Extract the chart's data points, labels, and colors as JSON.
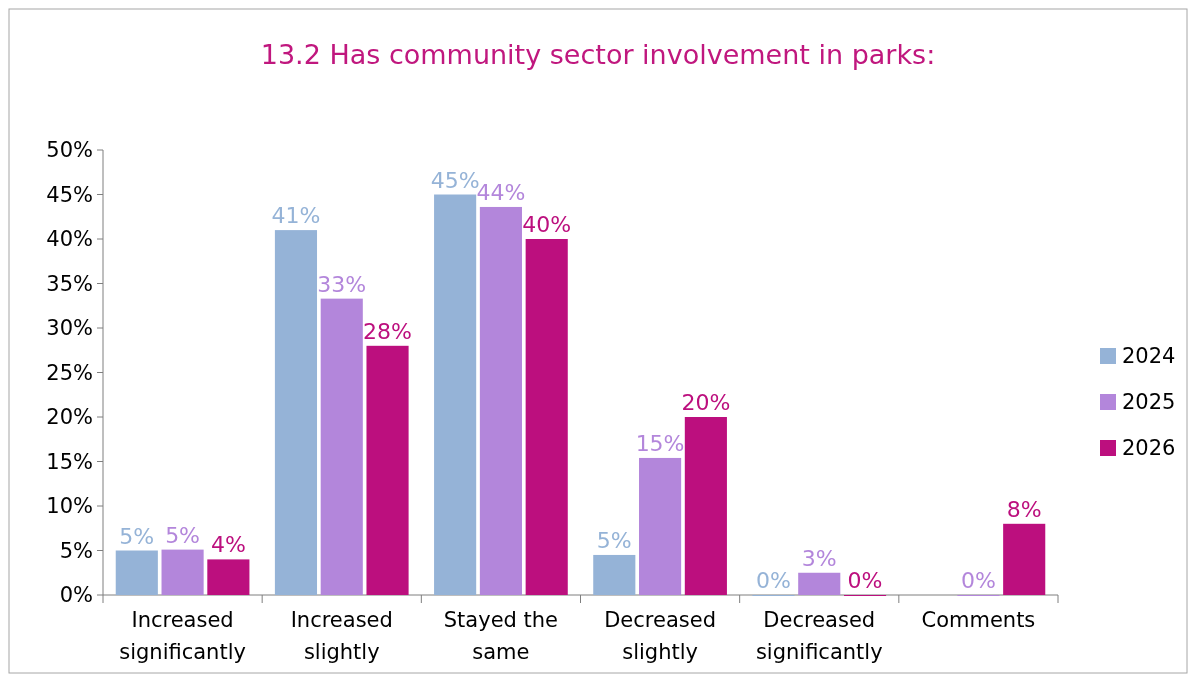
{
  "chart_data": {
    "type": "bar",
    "title": "13.2  Has community sector involvement in parks:",
    "categories": [
      "Increased significantly",
      "Increased slightly",
      "Stayed the same",
      "Decreased slightly",
      "Decreased significantly",
      "Comments"
    ],
    "series": [
      {
        "name": "2024",
        "color": "#95b3d7",
        "values": [
          5.0,
          41,
          45,
          4.5,
          0,
          null
        ],
        "value_labels": [
          "5%",
          "41%",
          "45%",
          "5%",
          "0%",
          null
        ]
      },
      {
        "name": "2025",
        "color": "#b386db",
        "values": [
          5.1,
          33.3,
          43.6,
          15.4,
          2.5,
          0
        ],
        "value_labels": [
          "5%",
          "33%",
          "44%",
          "15%",
          "3%",
          "0%"
        ]
      },
      {
        "name": "2026",
        "color": "#bc0f7e",
        "values": [
          4.0,
          28,
          40,
          20,
          0,
          8
        ],
        "value_labels": [
          "4%",
          "28%",
          "40%",
          "20%",
          "0%",
          "8%"
        ]
      }
    ],
    "ylim": [
      0,
      50
    ],
    "yticks": [
      {
        "value": 0,
        "label": "0%"
      },
      {
        "value": 5,
        "label": "5%"
      },
      {
        "value": 10,
        "label": "10%"
      },
      {
        "value": 15,
        "label": "15%"
      },
      {
        "value": 20,
        "label": "20%"
      },
      {
        "value": 25,
        "label": "25%"
      },
      {
        "value": 30,
        "label": "30%"
      },
      {
        "value": 35,
        "label": "35%"
      },
      {
        "value": 40,
        "label": "40%"
      },
      {
        "value": 45,
        "label": "45%"
      },
      {
        "value": 50,
        "label": "50%"
      }
    ],
    "grid": false,
    "legend": "right"
  }
}
